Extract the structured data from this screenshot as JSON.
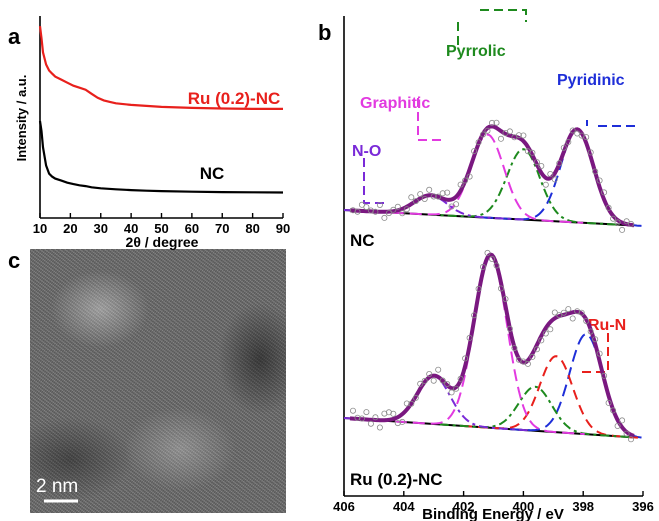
{
  "panels": {
    "a": "a",
    "b": "b",
    "c": "c"
  },
  "scale_bar": "2 nm",
  "chart_data": [
    {
      "type": "line",
      "panel": "a",
      "xlabel": "2θ / degree",
      "ylabel": "Intensity / a.u.",
      "xlim": [
        10,
        90
      ],
      "xticks": [
        10,
        20,
        30,
        40,
        50,
        60,
        70,
        80,
        90
      ],
      "y_ticks_shown": false,
      "grid": false,
      "series": [
        {
          "name": "Ru (0.2)-NC",
          "color": "#e8201c",
          "x": [
            10,
            10.5,
            11,
            12,
            13,
            14,
            15,
            17,
            19,
            21,
            23,
            25,
            27,
            29,
            31,
            33,
            35,
            40,
            45,
            50,
            60,
            70,
            80,
            90
          ],
          "y": [
            9.5,
            8.9,
            8.2,
            7.6,
            7.3,
            7.15,
            7.0,
            6.85,
            6.7,
            6.55,
            6.45,
            6.35,
            6.15,
            5.95,
            5.82,
            5.75,
            5.68,
            5.6,
            5.55,
            5.5,
            5.45,
            5.42,
            5.4,
            5.4
          ]
        },
        {
          "name": "NC",
          "color": "#000000",
          "x": [
            10,
            10.5,
            11,
            12,
            13,
            14,
            15,
            17,
            19,
            21,
            23,
            25,
            27,
            30,
            35,
            40,
            45,
            50,
            60,
            70,
            80,
            90
          ],
          "y": [
            4.8,
            4.3,
            3.5,
            2.6,
            2.2,
            2.05,
            1.95,
            1.85,
            1.75,
            1.68,
            1.62,
            1.58,
            1.52,
            1.47,
            1.42,
            1.38,
            1.35,
            1.33,
            1.3,
            1.28,
            1.27,
            1.26
          ]
        }
      ]
    },
    {
      "type": "line",
      "panel": "b",
      "xlabel": "Binding Energy / eV",
      "xlim": [
        406,
        396
      ],
      "x_reversed": true,
      "xticks": [
        406,
        404,
        402,
        400,
        398,
        396
      ],
      "grid": false,
      "series_groups": [
        {
          "sample": "NC",
          "components": [
            {
              "name": "Pyridinic",
              "color": "#1e2ed8",
              "center": 398.2,
              "height": 0.58
            },
            {
              "name": "Pyrrolic",
              "color": "#1e8a1e",
              "center": 400.0,
              "height": 0.44
            },
            {
              "name": "Graphitic",
              "color": "#e23ae0",
              "center": 401.2,
              "height": 0.52
            },
            {
              "name": "N-O",
              "color": "#7a2ad8",
              "center": 403.1,
              "height": 0.12
            }
          ],
          "baseline_color": "#000000",
          "envelope_color": "#7a1880"
        },
        {
          "sample": "Ru (0.2)-NC",
          "components": [
            {
              "name": "Pyridinic",
              "color": "#1e2ed8",
              "center": 397.9,
              "height": 0.5
            },
            {
              "name": "Ru-N",
              "color": "#e8201c",
              "center": 398.9,
              "height": 0.38
            },
            {
              "name": "Pyrrolic",
              "color": "#1e8a1e",
              "center": 399.6,
              "height": 0.22
            },
            {
              "name": "Graphitic",
              "color": "#e23ae0",
              "center": 401.1,
              "height": 0.86
            },
            {
              "name": "N-O",
              "color": "#7a2ad8",
              "center": 403.0,
              "height": 0.24
            }
          ],
          "baseline_color": "#000000",
          "envelope_color": "#7a1880"
        }
      ],
      "annotations": [
        "Pyrrolic",
        "Pyridinic",
        "Graphitic",
        "N-O",
        "Ru-N"
      ],
      "sample_labels": [
        "NC",
        "Ru (0.2)-NC"
      ]
    }
  ]
}
